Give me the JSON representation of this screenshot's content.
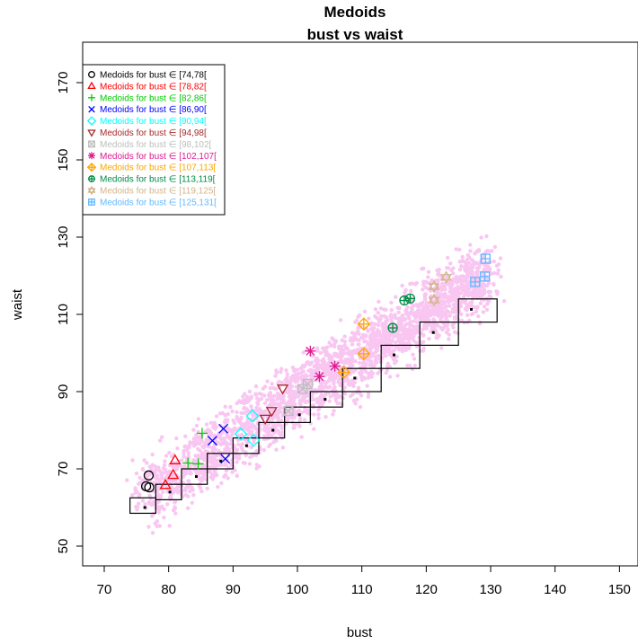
{
  "chart_data": {
    "type": "scatter",
    "title": "Medoids",
    "subtitle": "bust vs waist",
    "xlabel": "bust",
    "ylabel": "waist",
    "xlim": [
      67,
      152
    ],
    "ylim": [
      47,
      177
    ],
    "xticks": [
      70,
      80,
      90,
      100,
      110,
      120,
      130,
      140,
      150
    ],
    "yticks": [
      50,
      70,
      90,
      110,
      130,
      150,
      170
    ],
    "legend_position": "top-left",
    "background_cloud": {
      "color": "#f9c6f2",
      "description_axis": "bust vs waist",
      "band": [
        [
          76,
          63
        ],
        [
          130,
          121
        ]
      ],
      "spread": 5
    },
    "bins": [
      {
        "x0": 74,
        "x1": 78,
        "lo": 58.5,
        "hi": 62.5,
        "mx": 76.3,
        "my": 60.0
      },
      {
        "x0": 78,
        "x1": 82,
        "lo": 62.0,
        "hi": 66.0,
        "mx": 80.2,
        "my": 64.0
      },
      {
        "x0": 82,
        "x1": 86,
        "lo": 66.0,
        "hi": 70.0,
        "mx": 84.3,
        "my": 68.0
      },
      {
        "x0": 86,
        "x1": 90,
        "lo": 70.0,
        "hi": 74.0,
        "mx": 88.1,
        "my": 72.0
      },
      {
        "x0": 90,
        "x1": 94,
        "lo": 74.0,
        "hi": 78.0,
        "mx": 92.1,
        "my": 76.0
      },
      {
        "x0": 94,
        "x1": 98,
        "lo": 78.0,
        "hi": 82.0,
        "mx": 96.2,
        "my": 80.0
      },
      {
        "x0": 98,
        "x1": 102,
        "lo": 82.0,
        "hi": 86.0,
        "mx": 100.3,
        "my": 84.0
      },
      {
        "x0": 102,
        "x1": 107,
        "lo": 86.0,
        "hi": 90.0,
        "mx": 104.3,
        "my": 88.0
      },
      {
        "x0": 107,
        "x1": 113,
        "lo": 90.0,
        "hi": 96.0,
        "mx": 108.9,
        "my": 93.5
      },
      {
        "x0": 113,
        "x1": 119,
        "lo": 96.0,
        "hi": 102.0,
        "mx": 115.0,
        "my": 99.5
      },
      {
        "x0": 119,
        "x1": 125,
        "lo": 102.0,
        "hi": 108.0,
        "mx": 121.1,
        "my": 105.3
      },
      {
        "x0": 125,
        "x1": 131,
        "lo": 108.0,
        "hi": 114.0,
        "mx": 127.0,
        "my": 111.3
      }
    ],
    "series": [
      {
        "name": "Medoids for bust ∈ [74,78[",
        "color": "#000000",
        "symbol": "circle",
        "points": [
          [
            76.5,
            65.5
          ],
          [
            76.9,
            68.3
          ],
          [
            77.0,
            65.2
          ]
        ]
      },
      {
        "name": "Medoids for bust ∈ [78,82[",
        "color": "#ff0000",
        "symbol": "triangle-up",
        "points": [
          [
            79.5,
            65.8
          ],
          [
            80.7,
            68.4
          ],
          [
            81.0,
            72.2
          ]
        ]
      },
      {
        "name": "Medoids for bust ∈ [82,86[",
        "color": "#00cc00",
        "symbol": "plus",
        "points": [
          [
            83.0,
            71.5
          ],
          [
            84.6,
            71.3
          ],
          [
            85.2,
            79.2
          ]
        ]
      },
      {
        "name": "Medoids for bust ∈ [86,90[",
        "color": "#0000ff",
        "symbol": "x",
        "points": [
          [
            86.8,
            77.3
          ],
          [
            88.5,
            80.4
          ],
          [
            88.8,
            72.6
          ]
        ]
      },
      {
        "name": "Medoids for bust ∈ [90,94[",
        "color": "#00ffff",
        "symbol": "diamond",
        "points": [
          [
            91.2,
            79.0
          ],
          [
            93.0,
            83.7
          ],
          [
            93.2,
            77.4
          ]
        ]
      },
      {
        "name": "Medoids for bust ∈ [94,98[",
        "color": "#a52a2a",
        "symbol": "triangle-down",
        "points": [
          [
            95.0,
            83.0
          ],
          [
            96.0,
            85.0
          ],
          [
            97.7,
            90.8
          ]
        ]
      },
      {
        "name": "Medoids for bust ∈ [98,102[",
        "color": "#bebebe",
        "symbol": "square-x",
        "points": [
          [
            98.6,
            85.0
          ],
          [
            100.8,
            90.7
          ],
          [
            101.6,
            92.0
          ]
        ]
      },
      {
        "name": "Medoids for bust ∈ [102,107[",
        "color": "#dd1a91",
        "symbol": "asterisk",
        "points": [
          [
            102.0,
            100.5
          ],
          [
            103.4,
            93.9
          ],
          [
            105.8,
            96.6
          ]
        ]
      },
      {
        "name": "Medoids for bust ∈ [107,113[",
        "color": "#ffa500",
        "symbol": "diamond-plus",
        "points": [
          [
            107.2,
            95.0
          ],
          [
            110.3,
            107.5
          ],
          [
            110.3,
            99.8
          ]
        ]
      },
      {
        "name": "Medoids for bust ∈ [113,119[",
        "color": "#008b45",
        "symbol": "circle-plus",
        "points": [
          [
            114.8,
            106.5
          ],
          [
            116.6,
            113.6
          ],
          [
            117.5,
            114.1
          ]
        ]
      },
      {
        "name": "Medoids for bust ∈ [119,125[",
        "color": "#d2b48c",
        "symbol": "star-of-david",
        "points": [
          [
            121.2,
            117.2
          ],
          [
            121.2,
            113.7
          ],
          [
            123.1,
            119.6
          ]
        ]
      },
      {
        "name": "Medoids for bust ∈ [125,131[",
        "color": "#63b8ff",
        "symbol": "square-plus",
        "points": [
          [
            127.6,
            118.4
          ],
          [
            129.2,
            124.4
          ],
          [
            129.1,
            119.8
          ]
        ]
      }
    ]
  }
}
